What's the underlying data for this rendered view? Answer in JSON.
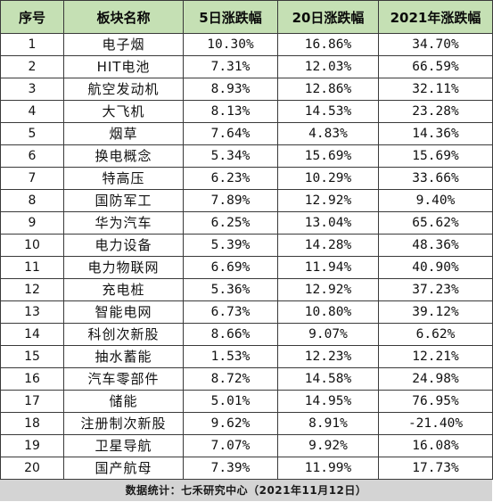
{
  "table": {
    "headers": {
      "rank": "序号",
      "name": "板块名称",
      "d5": "5日涨跌幅",
      "d20": "20日涨跌幅",
      "ytd": "2021年涨跌幅"
    },
    "rows": [
      {
        "rank": "1",
        "name": "电子烟",
        "d5": "10.30%",
        "d20": "16.86%",
        "ytd": "34.70%"
      },
      {
        "rank": "2",
        "name": "HIT电池",
        "d5": "7.31%",
        "d20": "12.03%",
        "ytd": "66.59%"
      },
      {
        "rank": "3",
        "name": "航空发动机",
        "d5": "8.93%",
        "d20": "12.86%",
        "ytd": "32.11%"
      },
      {
        "rank": "4",
        "name": "大飞机",
        "d5": "8.13%",
        "d20": "14.53%",
        "ytd": "23.28%"
      },
      {
        "rank": "5",
        "name": "烟草",
        "d5": "7.64%",
        "d20": "4.83%",
        "ytd": "14.36%"
      },
      {
        "rank": "6",
        "name": "换电概念",
        "d5": "5.34%",
        "d20": "15.69%",
        "ytd": "15.69%"
      },
      {
        "rank": "7",
        "name": "特高压",
        "d5": "6.23%",
        "d20": "10.29%",
        "ytd": "33.66%"
      },
      {
        "rank": "8",
        "name": "国防军工",
        "d5": "7.89%",
        "d20": "12.92%",
        "ytd": "9.40%"
      },
      {
        "rank": "9",
        "name": "华为汽车",
        "d5": "6.25%",
        "d20": "13.04%",
        "ytd": "65.62%"
      },
      {
        "rank": "10",
        "name": "电力设备",
        "d5": "5.39%",
        "d20": "14.28%",
        "ytd": "48.36%"
      },
      {
        "rank": "11",
        "name": "电力物联网",
        "d5": "6.69%",
        "d20": "11.94%",
        "ytd": "40.90%"
      },
      {
        "rank": "12",
        "name": "充电桩",
        "d5": "5.36%",
        "d20": "12.92%",
        "ytd": "37.23%"
      },
      {
        "rank": "13",
        "name": "智能电网",
        "d5": "6.73%",
        "d20": "10.80%",
        "ytd": "39.12%"
      },
      {
        "rank": "14",
        "name": "科创次新股",
        "d5": "8.66%",
        "d20": "9.07%",
        "ytd": "6.62%"
      },
      {
        "rank": "15",
        "name": "抽水蓄能",
        "d5": "1.53%",
        "d20": "12.23%",
        "ytd": "12.21%"
      },
      {
        "rank": "16",
        "name": "汽车零部件",
        "d5": "8.72%",
        "d20": "14.58%",
        "ytd": "24.98%"
      },
      {
        "rank": "17",
        "name": "储能",
        "d5": "5.01%",
        "d20": "14.95%",
        "ytd": "76.95%"
      },
      {
        "rank": "18",
        "name": "注册制次新股",
        "d5": "9.62%",
        "d20": "8.91%",
        "ytd": "-21.40%"
      },
      {
        "rank": "19",
        "name": "卫星导航",
        "d5": "7.07%",
        "d20": "9.92%",
        "ytd": "16.08%"
      },
      {
        "rank": "20",
        "name": "国产航母",
        "d5": "7.39%",
        "d20": "11.99%",
        "ytd": "17.73%"
      }
    ]
  },
  "footer": {
    "source": "数据统计：七禾研究中心（2021年11月12日）"
  },
  "colors": {
    "header_bg": "#c5e0b4",
    "footer_bg": "#d4d4d4",
    "border": "#3a3a3a"
  }
}
